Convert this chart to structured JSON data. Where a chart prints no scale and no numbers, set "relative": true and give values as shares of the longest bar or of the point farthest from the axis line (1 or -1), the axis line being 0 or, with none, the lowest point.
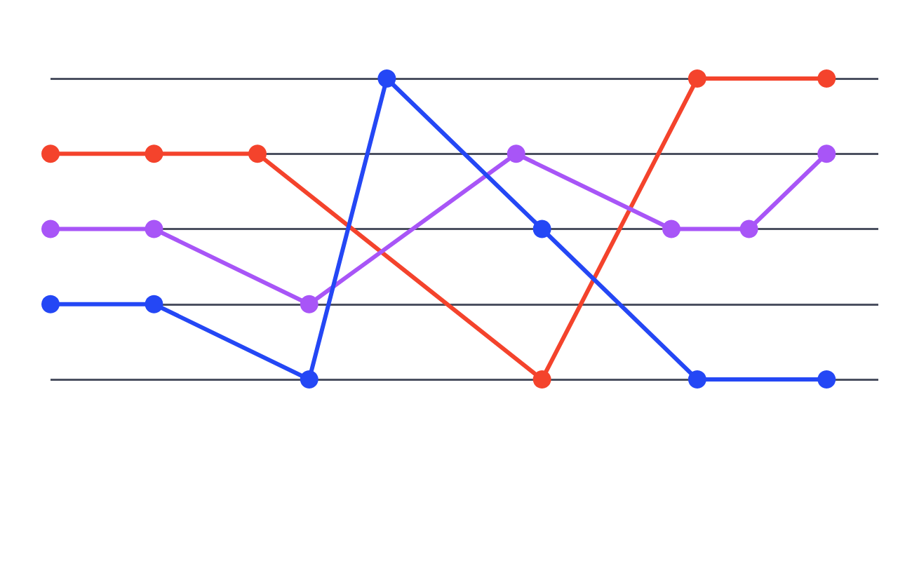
{
  "chart_data": {
    "type": "line",
    "relative": true,
    "grid": "y",
    "marker": "circle",
    "line_style": "solid",
    "categories": [
      null,
      null,
      null,
      null,
      null,
      null,
      null,
      null,
      null,
      null,
      null,
      null,
      null,
      null,
      null,
      null,
      null,
      null,
      null,
      null,
      null,
      null,
      null,
      null,
      null,
      null,
      null,
      null,
      null,
      null,
      null,
      null,
      null
    ],
    "series": [
      {
        "color": "#f4432c",
        "values": [
          0.75,
          null,
          null,
          null,
          0.75,
          null,
          null,
          null,
          0.75,
          null,
          null,
          null,
          null,
          null,
          null,
          null,
          null,
          null,
          null,
          0,
          null,
          null,
          null,
          null,
          null,
          1,
          null,
          null,
          null,
          null,
          1,
          null,
          null
        ]
      },
      {
        "color": "#a855f7",
        "values": [
          0.5,
          null,
          null,
          null,
          0.5,
          null,
          null,
          null,
          null,
          null,
          0.25,
          null,
          null,
          null,
          null,
          null,
          null,
          null,
          0.75,
          null,
          null,
          null,
          null,
          null,
          0.5,
          null,
          null,
          0.5,
          null,
          null,
          0.75,
          null,
          null
        ]
      },
      {
        "color": "#2447f5",
        "values": [
          0.25,
          null,
          null,
          null,
          0.25,
          null,
          null,
          null,
          null,
          null,
          0,
          null,
          null,
          1,
          null,
          null,
          null,
          null,
          null,
          0.5,
          null,
          null,
          null,
          null,
          null,
          0,
          null,
          null,
          null,
          null,
          0,
          null,
          null
        ]
      }
    ]
  }
}
